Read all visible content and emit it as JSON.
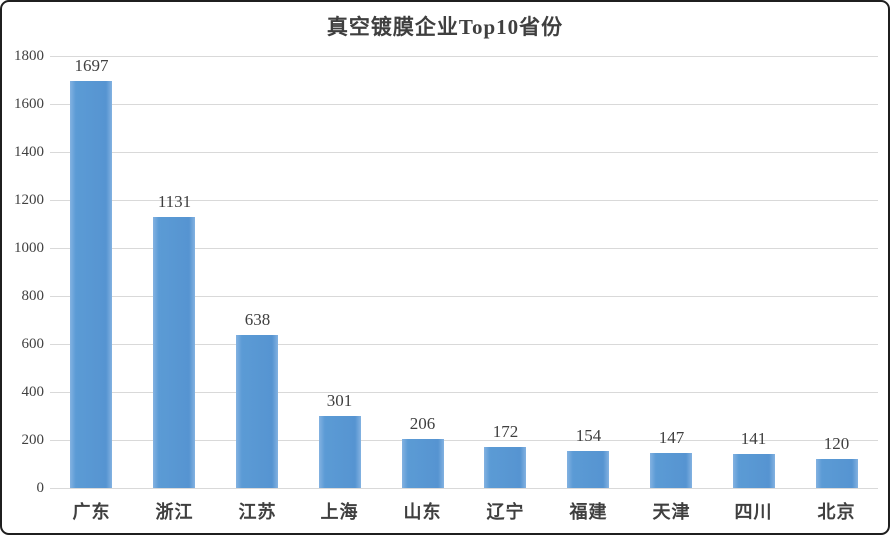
{
  "chart_data": {
    "type": "bar",
    "title": "真空镀膜企业Top10省份",
    "categories": [
      "广东",
      "浙江",
      "江苏",
      "上海",
      "山东",
      "辽宁",
      "福建",
      "天津",
      "四川",
      "北京"
    ],
    "values": [
      1697,
      1131,
      638,
      301,
      206,
      172,
      154,
      147,
      141,
      120
    ],
    "xlabel": "",
    "ylabel": "",
    "ylim": [
      0,
      1800
    ],
    "ytick_step": 200,
    "grid": true,
    "legend_position": "none",
    "value_labels_shown": true
  },
  "colors": {
    "bar": "#5b9bd5",
    "bar_edge_highlight": "#83b2e1",
    "gridline": "#d9d9d9",
    "text": "#3f3f3f",
    "axis_text": "#404040",
    "card_border": "#1f1f1f",
    "background": "#ffffff"
  }
}
